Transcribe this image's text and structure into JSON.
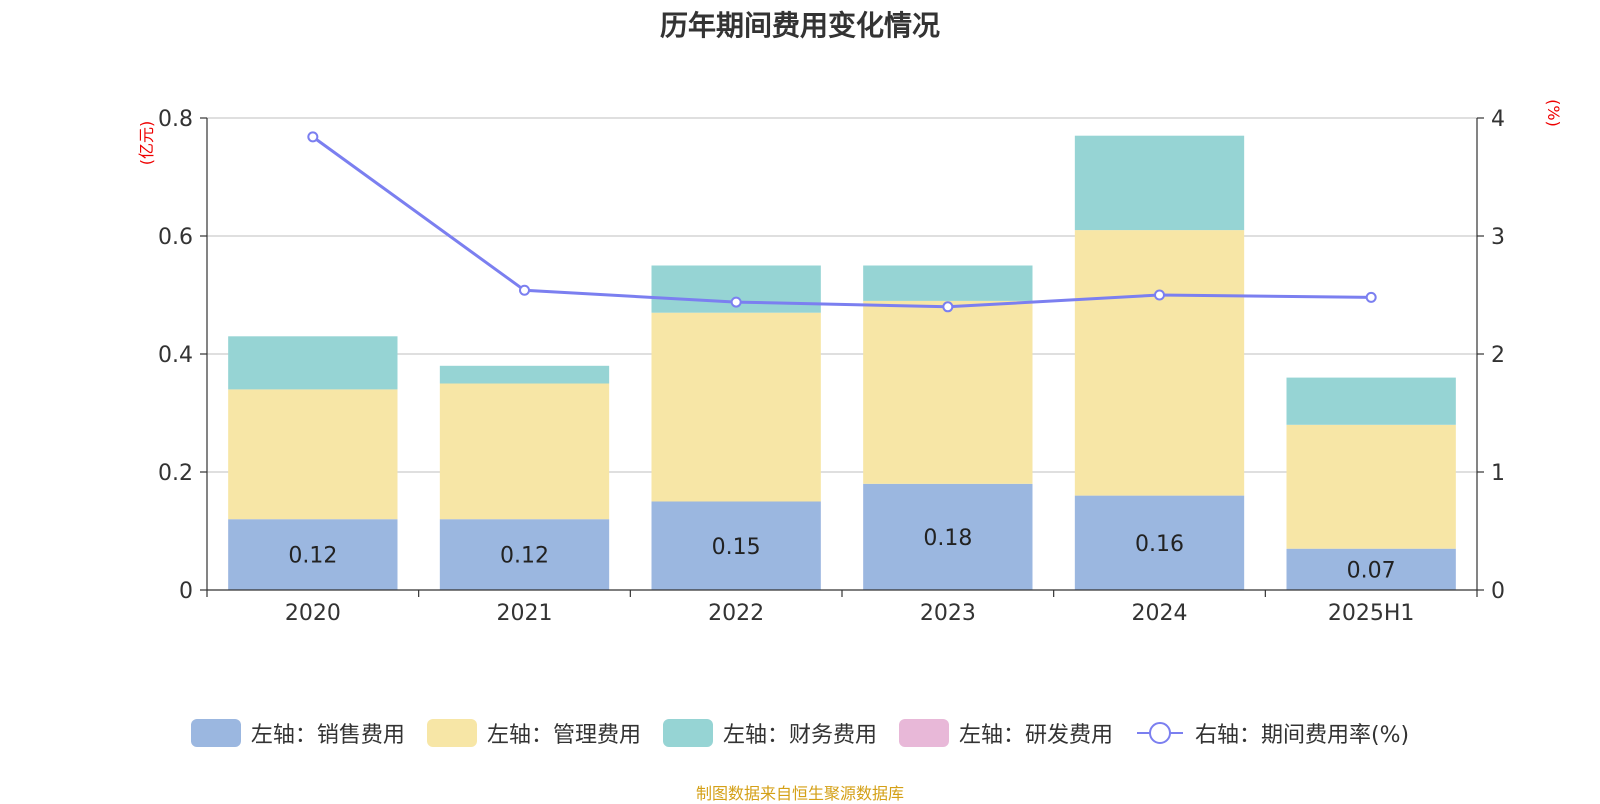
{
  "chart_data": {
    "type": "bar+line",
    "title": "历年期间费用变化情况",
    "categories": [
      "2020",
      "2021",
      "2022",
      "2023",
      "2024",
      "2025H1"
    ],
    "left_axis": {
      "unit_label": "(亿元)",
      "ylim": [
        0,
        0.8
      ],
      "ticks": [
        "0",
        "0.2",
        "0.4",
        "0.6",
        "0.8"
      ],
      "tick_values": [
        0,
        0.2,
        0.4,
        0.6,
        0.8
      ]
    },
    "right_axis": {
      "unit_label": "(%)",
      "ylim": [
        0,
        4
      ],
      "ticks": [
        "0",
        "1",
        "2",
        "3",
        "4"
      ],
      "tick_values": [
        0,
        1,
        2,
        3,
        4
      ]
    },
    "stacked_series": [
      {
        "name": "左轴：销售费用",
        "color": "#9bb7e0",
        "values": [
          0.12,
          0.12,
          0.15,
          0.18,
          0.16,
          0.07
        ],
        "labels": [
          "0.12",
          "0.12",
          "0.15",
          "0.18",
          "0.16",
          "0.07"
        ]
      },
      {
        "name": "左轴：管理费用",
        "color": "#f7e6a6",
        "values": [
          0.22,
          0.23,
          0.32,
          0.31,
          0.45,
          0.21
        ]
      },
      {
        "name": "左轴：财务费用",
        "color": "#96d4d4",
        "values": [
          0.09,
          0.03,
          0.08,
          0.06,
          0.16,
          0.08
        ]
      },
      {
        "name": "左轴：研发费用",
        "color": "#e8b8d8",
        "values": [
          0,
          0,
          0,
          0,
          0,
          0
        ]
      }
    ],
    "line_series": {
      "name": "右轴：期间费用率(%)",
      "color": "#7b7ff0",
      "values": [
        3.84,
        2.54,
        2.44,
        2.4,
        2.5,
        2.48
      ]
    },
    "grid": true,
    "legend_position": "bottom"
  },
  "source_text": "制图数据来自恒生聚源数据库"
}
